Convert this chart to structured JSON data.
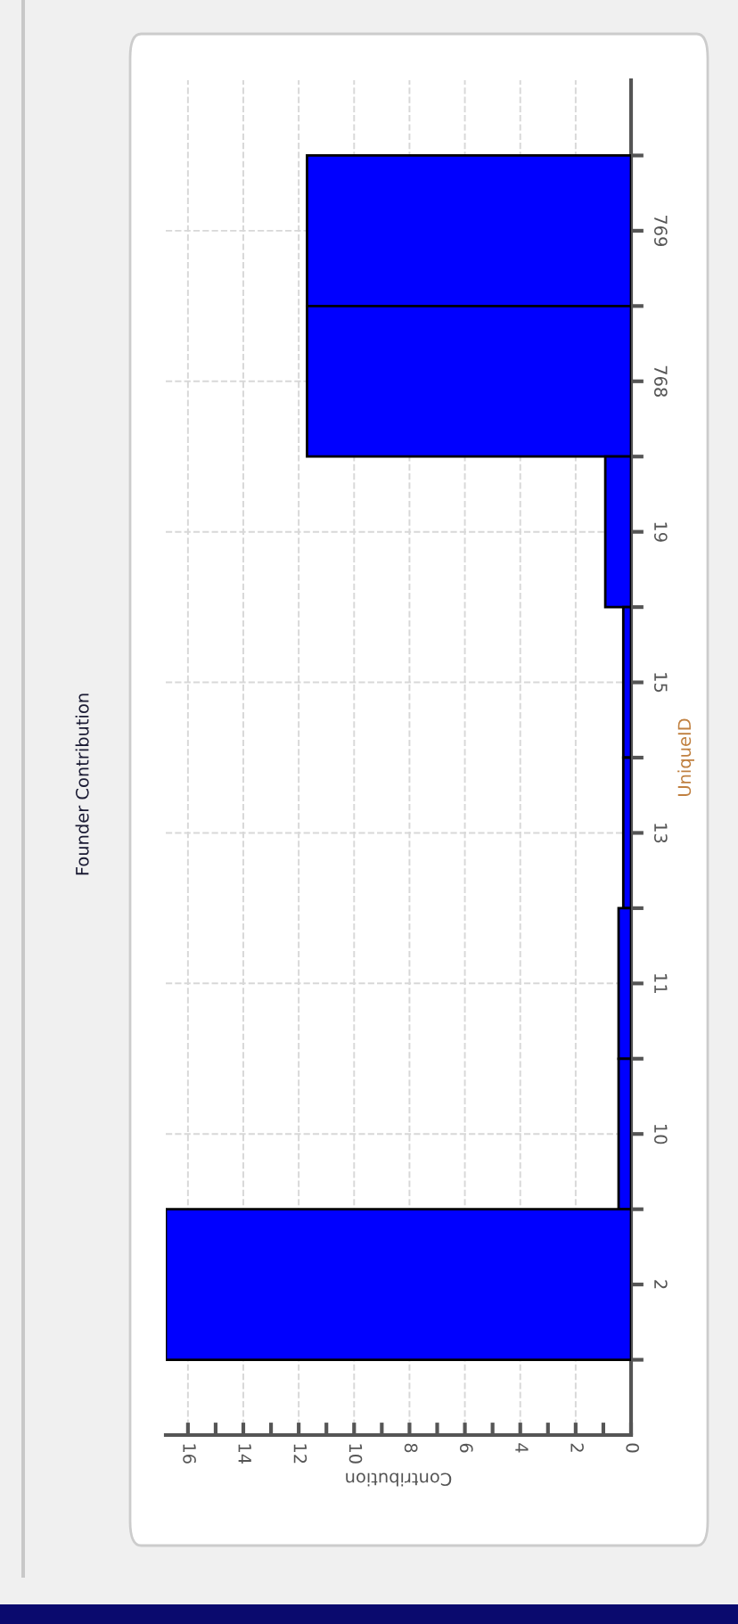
{
  "chart_data": {
    "type": "bar",
    "orientation": "horizontal",
    "title": "Founder Contribution",
    "xlabel": "Contribution",
    "ylabel": "UniqueID",
    "categories": [
      "769",
      "768",
      "19",
      "15",
      "13",
      "11",
      "10",
      "2"
    ],
    "values": [
      11.7,
      11.7,
      0.93,
      0.28,
      0.28,
      0.45,
      0.45,
      16.8
    ],
    "color": "#0000ff",
    "xlim": [
      16.8,
      0
    ],
    "xticks": [
      0,
      {
        "value": 1,
        "label": null
      },
      2,
      {
        "value": 3,
        "label": null
      },
      4,
      {
        "value": 5,
        "label": null
      },
      6,
      {
        "value": 7,
        "label": null
      },
      8,
      {
        "value": 9,
        "label": null
      },
      10,
      {
        "value": 11,
        "label": null
      },
      12,
      {
        "value": 13,
        "label": null
      },
      14,
      {
        "value": 15,
        "label": null
      },
      16
    ],
    "grid": true
  }
}
